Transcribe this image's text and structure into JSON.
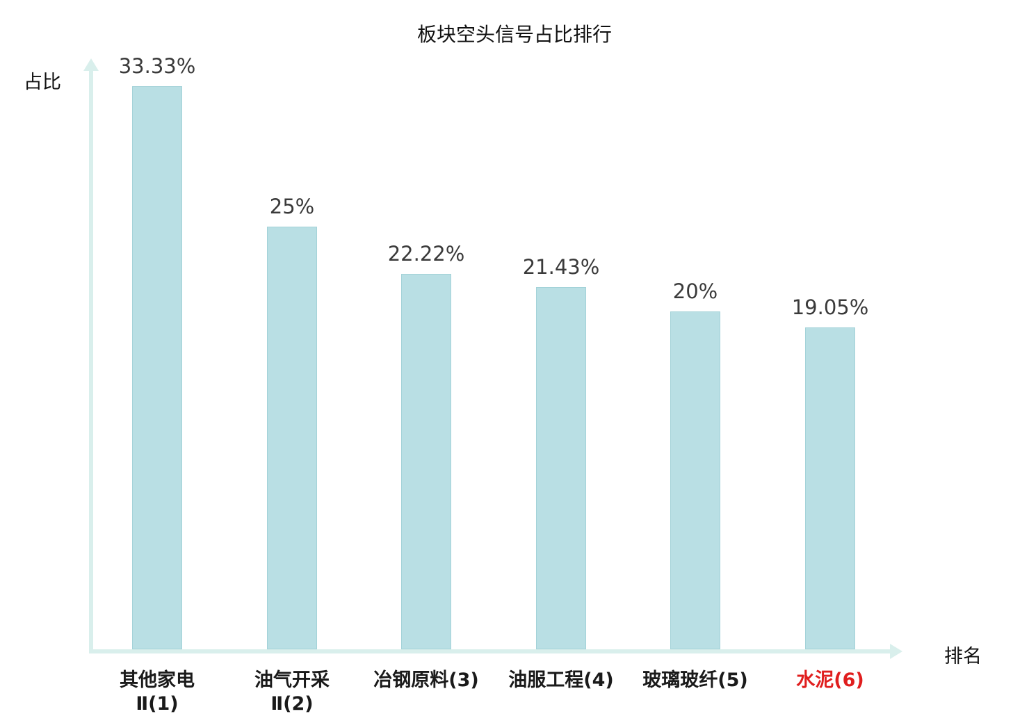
{
  "title": "板块空头信号占比排行",
  "axes": {
    "y_label": "占比",
    "x_label": "排名"
  },
  "colors": {
    "bar_fill": "#b9dfe4",
    "bar_border": "#a3d2d8",
    "axis": "#d9efec",
    "value_text": "#3a3a3a",
    "category_text": "#1a1a1a",
    "highlight_text": "#e01e1e"
  },
  "chart_data": {
    "type": "bar",
    "title": "板块空头信号占比排行",
    "xlabel": "排名",
    "ylabel": "占比",
    "categories": [
      "其他家电Ⅱ(1)",
      "油气开采Ⅱ(2)",
      "冶钢原料(3)",
      "油服工程(4)",
      "玻璃玻纤(5)",
      "水泥(6)"
    ],
    "category_lines": [
      [
        "其他家电",
        "Ⅱ(1)"
      ],
      [
        "油气开采",
        "Ⅱ(2)"
      ],
      [
        "冶钢原料(3)"
      ],
      [
        "油服工程(4)"
      ],
      [
        "玻璃玻纤(5)"
      ],
      [
        "水泥(6)"
      ]
    ],
    "values": [
      33.33,
      25,
      22.22,
      21.43,
      20,
      19.05
    ],
    "value_labels": [
      "33.33%",
      "25%",
      "22.22%",
      "21.43%",
      "20%",
      "19.05%"
    ],
    "highlight_index": 5,
    "ylim": [
      0,
      34.6
    ],
    "grid": false,
    "legend": "none"
  }
}
